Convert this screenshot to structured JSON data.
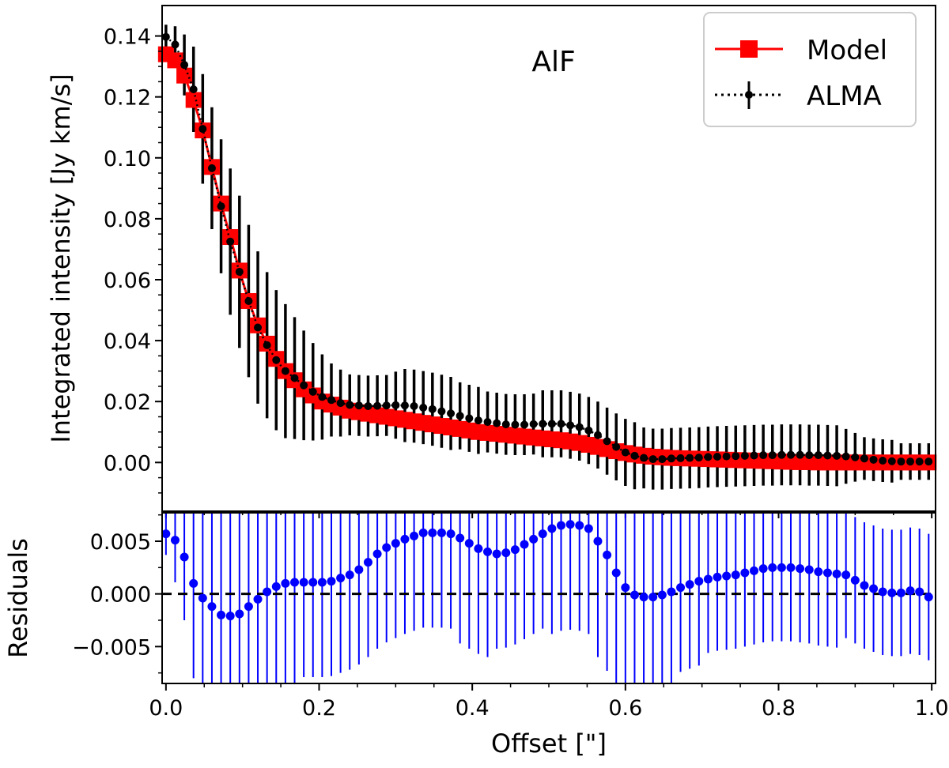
{
  "chart_data": [
    {
      "type": "line",
      "panel": "top",
      "annotation": "AlF",
      "xlabel": "",
      "ylabel": "Integrated intensity [Jy km/s]",
      "xlim": [
        -0.005,
        1.005
      ],
      "ylim": [
        -0.016,
        0.15
      ],
      "yticks": [
        0.0,
        0.02,
        0.04,
        0.06,
        0.08,
        0.1,
        0.12,
        0.14
      ],
      "ytick_labels": [
        "0.00",
        "0.02",
        "0.04",
        "0.06",
        "0.08",
        "0.10",
        "0.12",
        "0.14"
      ],
      "legend_position": "top-right",
      "legend": [
        "Model",
        "ALMA"
      ],
      "series": [
        {
          "name": "Model",
          "color": "#ff0000",
          "style": "solid-square",
          "x_step": 0.012,
          "values": [
            0.134,
            0.132,
            0.127,
            0.119,
            0.109,
            0.097,
            0.085,
            0.074,
            0.063,
            0.053,
            0.045,
            0.039,
            0.034,
            0.03,
            0.027,
            0.024,
            0.022,
            0.02,
            0.019,
            0.018,
            0.017,
            0.0165,
            0.016,
            0.0155,
            0.015,
            0.0145,
            0.014,
            0.0135,
            0.013,
            0.0125,
            0.012,
            0.0115,
            0.011,
            0.0105,
            0.01,
            0.0097,
            0.0094,
            0.0091,
            0.0088,
            0.0085,
            0.0082,
            0.0079,
            0.0076,
            0.0073,
            0.0069,
            0.0064,
            0.0058,
            0.0051,
            0.0044,
            0.0037,
            0.0031,
            0.0026,
            0.0022,
            0.0019,
            0.0017,
            0.0015,
            0.0014,
            0.0013,
            0.0012,
            0.0011,
            0.001,
            0.0009,
            0.0008,
            0.0007,
            0.0006,
            0.0005,
            0.0004,
            0.0003,
            0.0002,
            0.0001,
            0.0001,
            0.0,
            0.0,
            0.0,
            0.0,
            0.0,
            0.0,
            0.0,
            0.0,
            0.0,
            0.0,
            0.0,
            0.0,
            0.0
          ]
        },
        {
          "name": "ALMA",
          "color": "#000000",
          "style": "dotted-errorbar",
          "x_step": 0.012,
          "values": [
            0.1397,
            0.1372,
            0.1305,
            0.1225,
            0.1095,
            0.0966,
            0.0841,
            0.0725,
            0.0626,
            0.053,
            0.0443,
            0.0385,
            0.0336,
            0.03,
            0.0277,
            0.0253,
            0.0232,
            0.0215,
            0.0205,
            0.0195,
            0.0189,
            0.0187,
            0.0185,
            0.0186,
            0.0187,
            0.0188,
            0.0187,
            0.0185,
            0.018,
            0.0175,
            0.0168,
            0.0161,
            0.0153,
            0.0145,
            0.0138,
            0.0133,
            0.0129,
            0.0125,
            0.0124,
            0.0124,
            0.0126,
            0.0127,
            0.0127,
            0.0127,
            0.0122,
            0.0116,
            0.0105,
            0.009,
            0.007,
            0.0051,
            0.0033,
            0.0022,
            0.0015,
            0.0011,
            0.0011,
            0.0013,
            0.0014,
            0.0015,
            0.0016,
            0.0018,
            0.0019,
            0.002,
            0.0021,
            0.0022,
            0.0023,
            0.0024,
            0.0024,
            0.0025,
            0.0025,
            0.0025,
            0.0024,
            0.0024,
            0.0023,
            0.0022,
            0.002,
            0.0017,
            0.0013,
            0.0009,
            0.0006,
            0.0004,
            0.0003,
            0.0003,
            0.0003,
            0.0003
          ],
          "errors": [
            0.004,
            0.006,
            0.01,
            0.014,
            0.018,
            0.02,
            0.022,
            0.024,
            0.025,
            0.025,
            0.025,
            0.024,
            0.023,
            0.022,
            0.02,
            0.018,
            0.016,
            0.014,
            0.012,
            0.011,
            0.01,
            0.01,
            0.01,
            0.01,
            0.01,
            0.011,
            0.012,
            0.012,
            0.012,
            0.012,
            0.012,
            0.012,
            0.011,
            0.011,
            0.011,
            0.01,
            0.01,
            0.01,
            0.01,
            0.01,
            0.01,
            0.011,
            0.011,
            0.011,
            0.011,
            0.011,
            0.011,
            0.011,
            0.011,
            0.011,
            0.011,
            0.011,
            0.01,
            0.01,
            0.01,
            0.01,
            0.01,
            0.01,
            0.01,
            0.01,
            0.01,
            0.01,
            0.01,
            0.01,
            0.01,
            0.01,
            0.01,
            0.01,
            0.01,
            0.01,
            0.01,
            0.01,
            0.01,
            0.01,
            0.009,
            0.008,
            0.007,
            0.007,
            0.007,
            0.007,
            0.006,
            0.006,
            0.006,
            0.006
          ]
        }
      ]
    },
    {
      "type": "scatter",
      "panel": "bottom",
      "xlabel": "Offset [\"]",
      "ylabel": "Residuals",
      "xlim": [
        -0.005,
        1.005
      ],
      "ylim": [
        -0.0085,
        0.0077
      ],
      "xticks": [
        0.0,
        0.2,
        0.4,
        0.6,
        0.8,
        1.0
      ],
      "xtick_labels": [
        "0.0",
        "0.2",
        "0.4",
        "0.6",
        "0.8",
        "1.0"
      ],
      "yticks": [
        -0.005,
        0.0,
        0.005
      ],
      "ytick_labels": [
        "−0.005",
        "0.000",
        "0.005"
      ],
      "reference_line": 0.0,
      "series": [
        {
          "name": "Residuals",
          "color": "#0000ff",
          "x_step": 0.012,
          "values": [
            0.0057,
            0.0051,
            0.0035,
            0.001,
            -0.0004,
            -0.0012,
            -0.002,
            -0.0021,
            -0.0019,
            -0.0012,
            -0.0005,
            0.0002,
            0.0007,
            0.001,
            0.0011,
            0.0011,
            0.0011,
            0.0011,
            0.0012,
            0.0015,
            0.0018,
            0.0023,
            0.003,
            0.0038,
            0.0044,
            0.0048,
            0.0052,
            0.0055,
            0.0058,
            0.0058,
            0.0058,
            0.0057,
            0.0053,
            0.0048,
            0.0043,
            0.004,
            0.0038,
            0.0039,
            0.0042,
            0.0047,
            0.0052,
            0.0057,
            0.0062,
            0.0065,
            0.0066,
            0.0065,
            0.0062,
            0.005,
            0.0037,
            0.002,
            0.0006,
            -0.0001,
            -0.0003,
            -0.0003,
            -0.0001,
            0.0002,
            0.0006,
            0.0009,
            0.0012,
            0.0014,
            0.0016,
            0.0017,
            0.0018,
            0.002,
            0.0022,
            0.0024,
            0.0025,
            0.0025,
            0.0025,
            0.0024,
            0.0023,
            0.0021,
            0.002,
            0.0019,
            0.0018,
            0.0013,
            0.0008,
            0.0005,
            0.0002,
            0.0001,
            0.0001,
            0.0003,
            0.0002,
            -0.0003
          ],
          "errors": [
            0.002,
            0.004,
            0.006,
            0.009,
            0.009,
            0.01,
            0.011,
            0.011,
            0.011,
            0.011,
            0.01,
            0.01,
            0.01,
            0.01,
            0.01,
            0.009,
            0.009,
            0.009,
            0.009,
            0.009,
            0.009,
            0.009,
            0.009,
            0.009,
            0.009,
            0.009,
            0.009,
            0.009,
            0.009,
            0.009,
            0.009,
            0.009,
            0.01,
            0.01,
            0.01,
            0.01,
            0.009,
            0.009,
            0.009,
            0.009,
            0.009,
            0.009,
            0.01,
            0.01,
            0.01,
            0.01,
            0.01,
            0.011,
            0.011,
            0.011,
            0.012,
            0.012,
            0.012,
            0.011,
            0.01,
            0.009,
            0.008,
            0.008,
            0.008,
            0.007,
            0.007,
            0.007,
            0.007,
            0.007,
            0.007,
            0.007,
            0.007,
            0.007,
            0.007,
            0.007,
            0.007,
            0.007,
            0.007,
            0.007,
            0.006,
            0.006,
            0.006,
            0.006,
            0.006,
            0.006,
            0.006,
            0.006,
            0.006,
            0.006
          ]
        }
      ]
    }
  ]
}
